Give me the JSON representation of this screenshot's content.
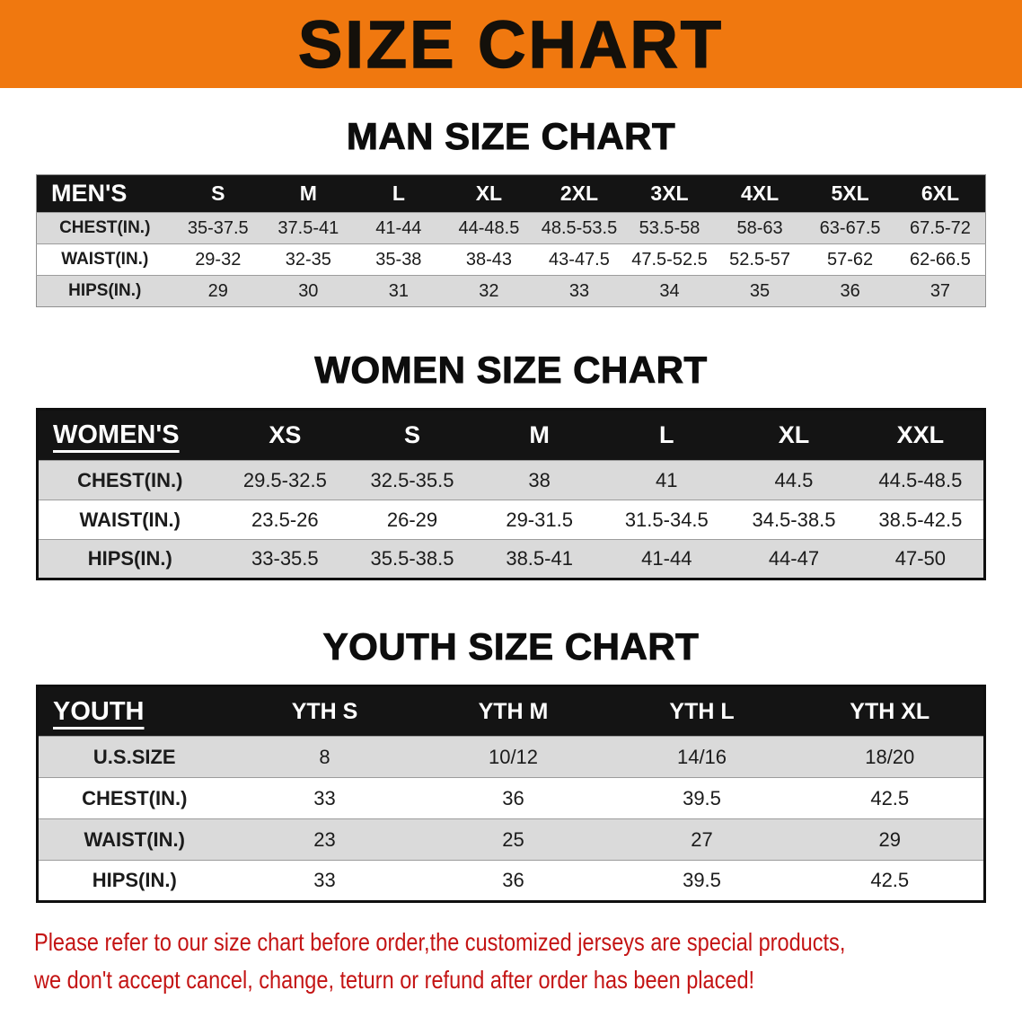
{
  "banner": {
    "title": "SIZE CHART"
  },
  "colors": {
    "banner_bg": "#f0780f",
    "header_bg": "#141414",
    "header_text": "#ffffff",
    "stripe": "#dadada",
    "footer_text": "#c41414"
  },
  "sections": {
    "men": {
      "heading": "MAN SIZE CHART",
      "table": {
        "header": [
          "MEN'S",
          "S",
          "M",
          "L",
          "XL",
          "2XL",
          "3XL",
          "4XL",
          "5XL",
          "6XL"
        ],
        "rows": [
          [
            "CHEST(IN.)",
            "35-37.5",
            "37.5-41",
            "41-44",
            "44-48.5",
            "48.5-53.5",
            "53.5-58",
            "58-63",
            "63-67.5",
            "67.5-72"
          ],
          [
            "WAIST(IN.)",
            "29-32",
            "32-35",
            "35-38",
            "38-43",
            "43-47.5",
            "47.5-52.5",
            "52.5-57",
            "57-62",
            "62-66.5"
          ],
          [
            "HIPS(IN.)",
            "29",
            "30",
            "31",
            "32",
            "33",
            "34",
            "35",
            "36",
            "37"
          ]
        ]
      }
    },
    "women": {
      "heading": "WOMEN SIZE CHART",
      "table": {
        "header": [
          "WOMEN'S",
          "XS",
          "S",
          "M",
          "L",
          "XL",
          "XXL"
        ],
        "rows": [
          [
            "CHEST(IN.)",
            "29.5-32.5",
            "32.5-35.5",
            "38",
            "41",
            "44.5",
            "44.5-48.5"
          ],
          [
            "WAIST(IN.)",
            "23.5-26",
            "26-29",
            "29-31.5",
            "31.5-34.5",
            "34.5-38.5",
            "38.5-42.5"
          ],
          [
            "HIPS(IN.)",
            "33-35.5",
            "35.5-38.5",
            "38.5-41",
            "41-44",
            "44-47",
            "47-50"
          ]
        ]
      }
    },
    "youth": {
      "heading": "YOUTH SIZE CHART",
      "table": {
        "header": [
          "YOUTH",
          "YTH S",
          "YTH M",
          "YTH L",
          "YTH XL"
        ],
        "rows": [
          [
            "U.S.SIZE",
            "8",
            "10/12",
            "14/16",
            "18/20"
          ],
          [
            "CHEST(IN.)",
            "33",
            "36",
            "39.5",
            "42.5"
          ],
          [
            "WAIST(IN.)",
            "23",
            "25",
            "27",
            "29"
          ],
          [
            "HIPS(IN.)",
            "33",
            "36",
            "39.5",
            "42.5"
          ]
        ]
      }
    }
  },
  "footer": {
    "line1": "Please refer to our size chart before order,the customized jerseys are special products,",
    "line2": "we don't accept cancel, change, teturn or refund after order has been placed!"
  }
}
